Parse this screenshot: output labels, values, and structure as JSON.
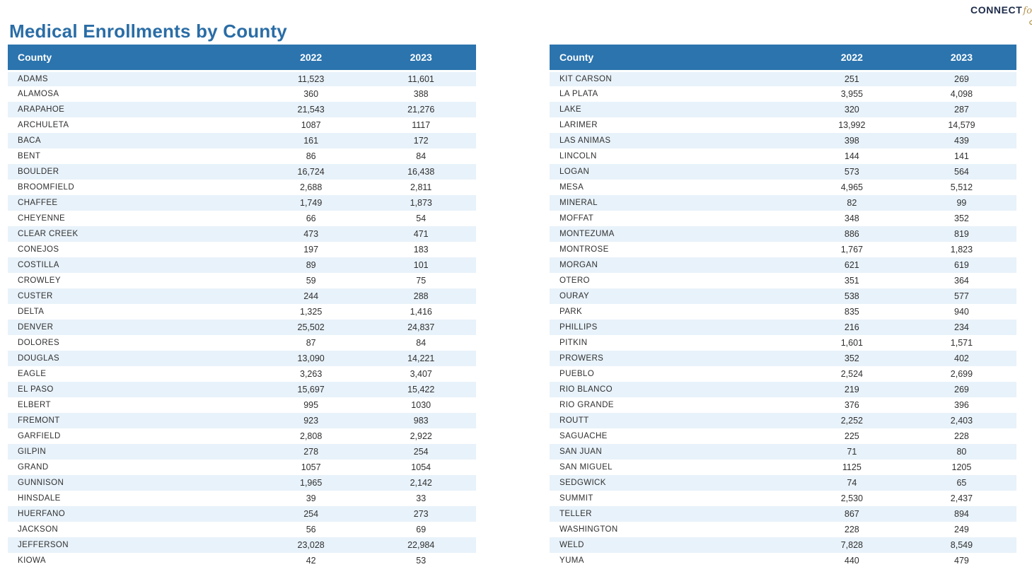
{
  "page": {
    "title": "Medical Enrollments by County"
  },
  "logo": {
    "wordmark": "CONNECT",
    "script_word": "for",
    "partial_letter": "H"
  },
  "colors": {
    "accent": "#2b74ae",
    "row-alt": "#e8f2fa",
    "title-color": "#2a6da6",
    "text-color": "#303030",
    "logo-navy": "#1d2b49",
    "logo-gold": "#b5934f"
  },
  "chart_data": {
    "type": "table",
    "title": "Medical Enrollments by County",
    "columns": [
      "County",
      "2022",
      "2023"
    ],
    "tables": [
      {
        "rows": [
          [
            "ADAMS",
            "11,523",
            "11,601"
          ],
          [
            "ALAMOSA",
            "360",
            "388"
          ],
          [
            "ARAPAHOE",
            "21,543",
            "21,276"
          ],
          [
            "ARCHULETA",
            "1087",
            "1117"
          ],
          [
            "BACA",
            "161",
            "172"
          ],
          [
            "BENT",
            "86",
            "84"
          ],
          [
            "BOULDER",
            "16,724",
            "16,438"
          ],
          [
            "BROOMFIELD",
            "2,688",
            "2,811"
          ],
          [
            "CHAFFEE",
            "1,749",
            "1,873"
          ],
          [
            "CHEYENNE",
            "66",
            "54"
          ],
          [
            "CLEAR CREEK",
            "473",
            "471"
          ],
          [
            "CONEJOS",
            "197",
            "183"
          ],
          [
            "COSTILLA",
            "89",
            "101"
          ],
          [
            "CROWLEY",
            "59",
            "75"
          ],
          [
            "CUSTER",
            "244",
            "288"
          ],
          [
            "DELTA",
            "1,325",
            "1,416"
          ],
          [
            "DENVER",
            "25,502",
            "24,837"
          ],
          [
            "DOLORES",
            "87",
            "84"
          ],
          [
            "DOUGLAS",
            "13,090",
            "14,221"
          ],
          [
            "EAGLE",
            "3,263",
            "3,407"
          ],
          [
            "EL PASO",
            "15,697",
            "15,422"
          ],
          [
            "ELBERT",
            "995",
            "1030"
          ],
          [
            "FREMONT",
            "923",
            "983"
          ],
          [
            "GARFIELD",
            "2,808",
            "2,922"
          ],
          [
            "GILPIN",
            "278",
            "254"
          ],
          [
            "GRAND",
            "1057",
            "1054"
          ],
          [
            "GUNNISON",
            "1,965",
            "2,142"
          ],
          [
            "HINSDALE",
            "39",
            "33"
          ],
          [
            "HUERFANO",
            "254",
            "273"
          ],
          [
            "JACKSON",
            "56",
            "69"
          ],
          [
            "JEFFERSON",
            "23,028",
            "22,984"
          ],
          [
            "KIOWA",
            "42",
            "53"
          ]
        ]
      },
      {
        "rows": [
          [
            "KIT CARSON",
            "251",
            "269"
          ],
          [
            "LA PLATA",
            "3,955",
            "4,098"
          ],
          [
            "LAKE",
            "320",
            "287"
          ],
          [
            "LARIMER",
            "13,992",
            "14,579"
          ],
          [
            "LAS ANIMAS",
            "398",
            "439"
          ],
          [
            "LINCOLN",
            "144",
            "141"
          ],
          [
            "LOGAN",
            "573",
            "564"
          ],
          [
            "MESA",
            "4,965",
            "5,512"
          ],
          [
            "MINERAL",
            "82",
            "99"
          ],
          [
            "MOFFAT",
            "348",
            "352"
          ],
          [
            "MONTEZUMA",
            "886",
            "819"
          ],
          [
            "MONTROSE",
            "1,767",
            "1,823"
          ],
          [
            "MORGAN",
            "621",
            "619"
          ],
          [
            "OTERO",
            "351",
            "364"
          ],
          [
            "OURAY",
            "538",
            "577"
          ],
          [
            "PARK",
            "835",
            "940"
          ],
          [
            "PHILLIPS",
            "216",
            "234"
          ],
          [
            "PITKIN",
            "1,601",
            "1,571"
          ],
          [
            "PROWERS",
            "352",
            "402"
          ],
          [
            "PUEBLO",
            "2,524",
            "2,699"
          ],
          [
            "RIO BLANCO",
            "219",
            "269"
          ],
          [
            "RIO GRANDE",
            "376",
            "396"
          ],
          [
            "ROUTT",
            "2,252",
            "2,403"
          ],
          [
            "SAGUACHE",
            "225",
            "228"
          ],
          [
            "SAN JUAN",
            "71",
            "80"
          ],
          [
            "SAN MIGUEL",
            "1125",
            "1205"
          ],
          [
            "SEDGWICK",
            "74",
            "65"
          ],
          [
            "SUMMIT",
            "2,530",
            "2,437"
          ],
          [
            "TELLER",
            "867",
            "894"
          ],
          [
            "WASHINGTON",
            "228",
            "249"
          ],
          [
            "WELD",
            "7,828",
            "8,549"
          ],
          [
            "YUMA",
            "440",
            "479"
          ]
        ]
      }
    ]
  }
}
